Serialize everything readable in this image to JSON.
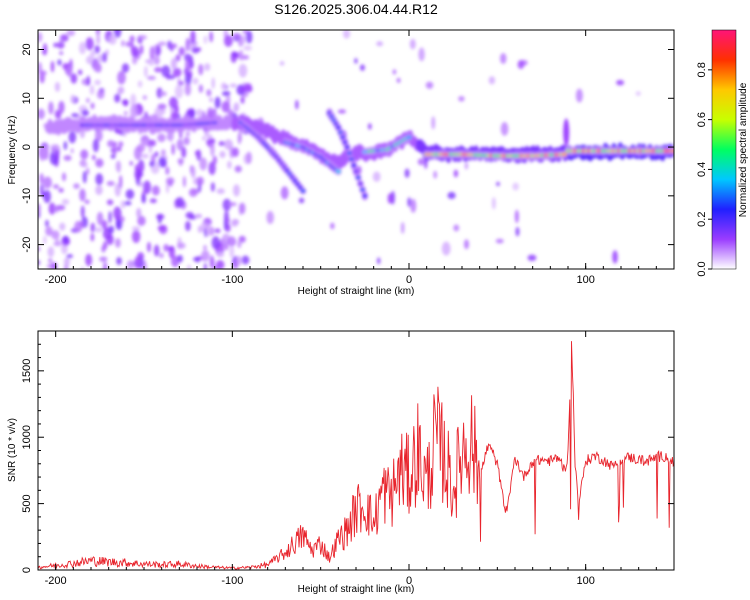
{
  "chart_data": [
    {
      "type": "heatmap",
      "title": "S126.2025.306.04.44.R12",
      "xlabel": "Height of straight line (km)",
      "ylabel": "Frequency (Hz)",
      "xlim": [
        -210,
        150
      ],
      "ylim": [
        -25,
        24
      ],
      "xticks": [
        -200,
        -100,
        0,
        100
      ],
      "yticks": [
        -20,
        -10,
        0,
        10,
        20
      ],
      "colorbar": {
        "label": "Normalized spectral amplitude",
        "range": [
          0.0,
          0.96
        ],
        "ticks": [
          "0.0",
          "0.2",
          "0.4",
          "0.6",
          "0.8"
        ],
        "tick_values": [
          0.0,
          0.2,
          0.4,
          0.6,
          0.8
        ],
        "colors": [
          "#ffffff",
          "#9a3cff",
          "#2020ff",
          "#00c8ff",
          "#00ff60",
          "#c8ff00",
          "#ffc800",
          "#ff3000",
          "#ff1478"
        ]
      },
      "ridge_centerline": {
        "x": [
          -205,
          -190,
          -170,
          -150,
          -130,
          -110,
          -95,
          -85,
          -70,
          -60,
          -50,
          -40,
          -30,
          -20,
          -10,
          0,
          10,
          20,
          40,
          60,
          80,
          90,
          100,
          120,
          150
        ],
        "y": [
          4,
          4.5,
          5,
          4.5,
          4.5,
          5,
          5,
          4,
          1.5,
          0.5,
          -2,
          -3,
          -1,
          -1.5,
          0,
          2,
          -1,
          -1.5,
          -1.5,
          -1.5,
          -1.5,
          -1,
          -1,
          -1,
          -1
        ]
      },
      "features": [
        {
          "x": [
            -95,
            -85,
            -75,
            -60
          ],
          "y": [
            5,
            2,
            -2,
            -9
          ],
          "amplitude": 0.3
        },
        {
          "x": [
            -70,
            -60,
            -50,
            -40
          ],
          "y": [
            1,
            0,
            -2,
            -5
          ],
          "amplitude": 0.4
        },
        {
          "x": [
            -45,
            -40,
            -35,
            -30,
            -25
          ],
          "y": [
            7,
            4,
            0,
            -5,
            -10
          ],
          "amplitude": 0.3
        },
        {
          "x": [
            -25,
            -12,
            0
          ],
          "y": [
            -1,
            -0.5,
            2
          ],
          "amplitude": 0.5
        },
        {
          "x": [
            10,
            30,
            50,
            70,
            88
          ],
          "y": [
            -1.5,
            -1.5,
            -1.8,
            -1.8,
            -1.5
          ],
          "amplitude": 0.85
        },
        {
          "x": [
            90,
            110,
            130,
            150
          ],
          "y": [
            -0.8,
            -0.8,
            -0.8,
            -0.8
          ],
          "amplitude": 0.9
        },
        {
          "x": [
            -110,
            -130,
            -150,
            -170,
            -185
          ],
          "y": [
            5,
            4.5,
            4.5,
            4.5,
            4.5
          ],
          "amplitude": 0.25
        }
      ]
    },
    {
      "type": "line",
      "xlabel": "Height of straight line (km)",
      "ylabel": "SNR (10 * v/v)",
      "xlim": [
        -210,
        150
      ],
      "ylim": [
        0,
        1800
      ],
      "xticks": [
        -200,
        -100,
        0,
        100
      ],
      "yticks": [
        0,
        500,
        1000,
        1500
      ],
      "color": "#e8242c",
      "x": [
        -210,
        -200,
        -190,
        -180,
        -170,
        -160,
        -150,
        -140,
        -130,
        -120,
        -110,
        -100,
        -90,
        -80,
        -70,
        -65,
        -60,
        -55,
        -50,
        -45,
        -40,
        -35,
        -30,
        -25,
        -20,
        -15,
        -10,
        -5,
        0,
        5,
        10,
        15,
        20,
        25,
        30,
        35,
        40,
        45,
        50,
        55,
        60,
        65,
        70,
        75,
        80,
        85,
        88,
        90,
        92,
        94,
        96,
        100,
        105,
        110,
        115,
        120,
        125,
        130,
        135,
        140,
        145,
        150
      ],
      "y": [
        20,
        35,
        50,
        70,
        60,
        55,
        45,
        40,
        45,
        30,
        20,
        15,
        20,
        40,
        130,
        200,
        260,
        150,
        200,
        90,
        230,
        300,
        450,
        500,
        350,
        600,
        550,
        750,
        700,
        900,
        650,
        1000,
        850,
        600,
        900,
        1000,
        700,
        950,
        800,
        400,
        850,
        700,
        820,
        830,
        820,
        850,
        750,
        870,
        1800,
        800,
        500,
        820,
        860,
        830,
        780,
        830,
        850,
        830,
        820,
        850,
        860,
        800
      ]
    }
  ]
}
